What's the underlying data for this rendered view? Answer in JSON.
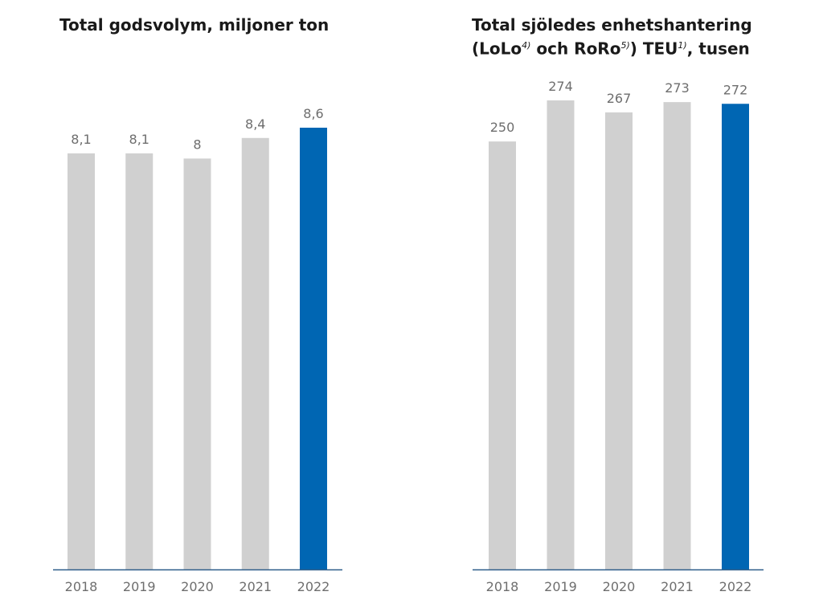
{
  "chart_data": [
    {
      "type": "bar",
      "title": "Total godsvolym, miljoner ton",
      "categories": [
        "2018",
        "2019",
        "2020",
        "2021",
        "2022"
      ],
      "values": [
        8.1,
        8.1,
        8.0,
        8.4,
        8.6
      ],
      "value_labels": [
        "8,1",
        "8,1",
        "8",
        "8,4",
        "8,6"
      ],
      "highlight_index": 4,
      "xlabel": "",
      "ylabel": "",
      "ylim": [
        0,
        8.6
      ],
      "grid": false,
      "colors": {
        "default": "#d0d0d0",
        "highlight": "#0066b3",
        "axis": "#2e5d8a"
      }
    },
    {
      "type": "bar",
      "title": "Total sjöledes enhetshantering (LoLo4) och RoRo5)) TEU1), tusen",
      "title_parts": {
        "line1": "Total sjöledes enhetshantering",
        "a": "(LoLo",
        "a_sup": "4)",
        "b": " och RoRo",
        "b_sup": "5)",
        "c": ") TEU",
        "c_sup": "1)",
        "d": ", tusen"
      },
      "categories": [
        "2018",
        "2019",
        "2020",
        "2021",
        "2022"
      ],
      "values": [
        250,
        274,
        267,
        273,
        272
      ],
      "value_labels": [
        "250",
        "274",
        "267",
        "273",
        "272"
      ],
      "highlight_index": 4,
      "xlabel": "",
      "ylabel": "",
      "ylim": [
        0,
        274
      ],
      "grid": false,
      "colors": {
        "default": "#d0d0d0",
        "highlight": "#0066b3",
        "axis": "#2e5d8a"
      }
    }
  ]
}
